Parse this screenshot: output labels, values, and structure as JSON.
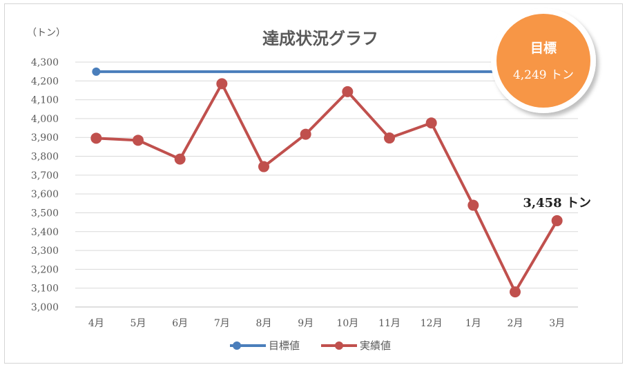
{
  "chart_data": {
    "type": "line",
    "title": "達成状況グラフ",
    "ylabel": "（トン）",
    "xlabel": "",
    "ylim": [
      3000,
      4300
    ],
    "y_ticks": [
      "4,300",
      "4,200",
      "4,100",
      "4,000",
      "3,900",
      "3,800",
      "3,700",
      "3,600",
      "3,500",
      "3,400",
      "3,300",
      "3,200",
      "3,100",
      "3,000"
    ],
    "y_tick_values": [
      4300,
      4200,
      4100,
      4000,
      3900,
      3800,
      3700,
      3600,
      3500,
      3400,
      3300,
      3200,
      3100,
      3000
    ],
    "categories": [
      "4月",
      "5月",
      "6月",
      "7月",
      "8月",
      "9月",
      "10月",
      "11月",
      "12月",
      "1月",
      "2月",
      "3月"
    ],
    "grid": true,
    "legend_position": "bottom",
    "series": [
      {
        "name": "目標値",
        "color": "#4a7ebb",
        "values": [
          4249,
          4249,
          4249,
          4249,
          4249,
          4249,
          4249,
          4249,
          4249,
          4249,
          4249,
          4249
        ]
      },
      {
        "name": "実績値",
        "color": "#c0504d",
        "values": [
          3896,
          3885,
          3785,
          4185,
          3745,
          3917,
          4143,
          3897,
          3977,
          3540,
          3080,
          3458
        ]
      }
    ],
    "annotations": [
      {
        "series": "実績値",
        "index": 11,
        "text": "3,458 トン"
      }
    ]
  },
  "badge": {
    "title": "目標",
    "value": "4,249 トン",
    "color": "#f79646"
  }
}
